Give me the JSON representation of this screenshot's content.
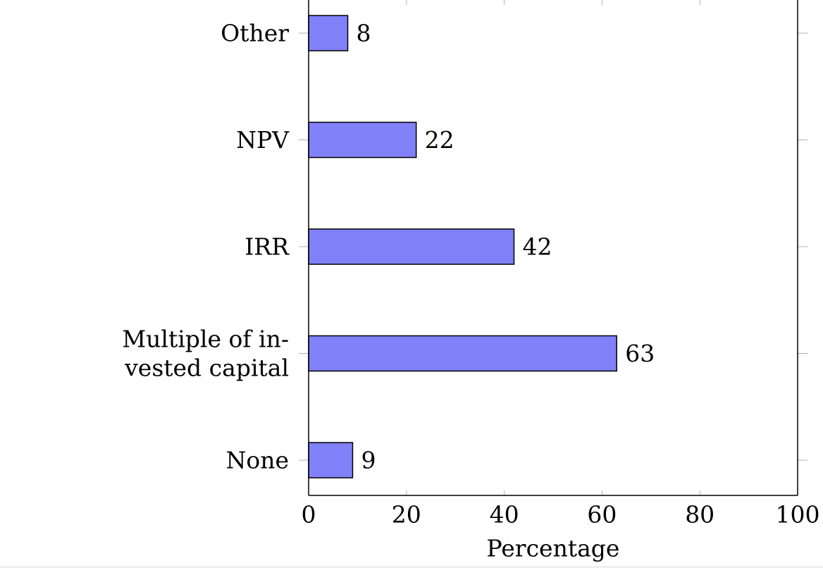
{
  "chart_data": {
    "type": "bar",
    "orientation": "horizontal",
    "categories": [
      "None",
      "Multiple of invested capital",
      "IRR",
      "NPV",
      "Other"
    ],
    "category_label_lines": [
      [
        "None"
      ],
      [
        "Multiple of in-",
        "vested capital"
      ],
      [
        "IRR"
      ],
      [
        "NPV"
      ],
      [
        "Other"
      ]
    ],
    "values": [
      9,
      63,
      42,
      22,
      8
    ],
    "data_labels": [
      "9",
      "63",
      "42",
      "22",
      "8"
    ],
    "xlabel": "Percentage",
    "ylabel": "",
    "title": "",
    "xlim": [
      0,
      100
    ],
    "x_ticks": [
      0,
      20,
      40,
      60,
      80,
      100
    ],
    "x_tick_labels": [
      "0",
      "20",
      "40",
      "60",
      "80",
      "100"
    ],
    "grid": false,
    "legend": "none",
    "bar_color": "#8080f9",
    "bar_edge_color": "#000000",
    "axis_color": "#000000",
    "tick_color": "#b0b0b0"
  }
}
